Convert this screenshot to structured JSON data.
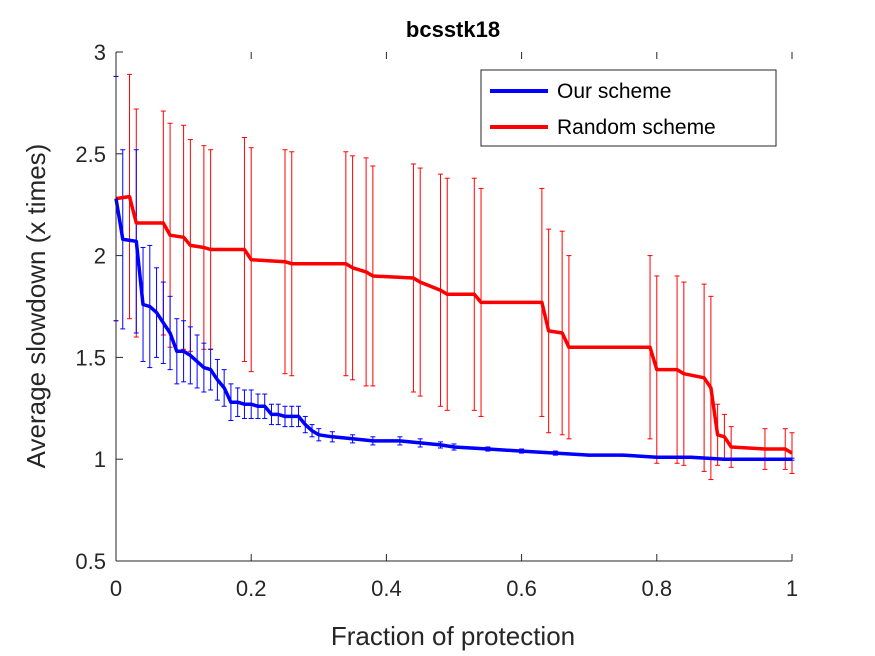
{
  "chart_data": {
    "type": "line",
    "title": "bcsstk18",
    "xlabel": "Fraction of protection",
    "ylabel": "Average slowdown (x times)",
    "xlim": [
      0,
      1
    ],
    "ylim": [
      0.5,
      3
    ],
    "xticks": [
      0,
      0.2,
      0.4,
      0.6,
      0.8,
      1
    ],
    "xtick_labels": [
      "0",
      "0.2",
      "0.4",
      "0.6",
      "0.8",
      "1"
    ],
    "yticks": [
      0.5,
      1,
      1.5,
      2,
      2.5,
      3
    ],
    "ytick_labels": [
      "0.5",
      "1",
      "1.5",
      "2",
      "2.5",
      "3"
    ],
    "grid": false,
    "legend_position": "top-right",
    "series": [
      {
        "name": "Our scheme",
        "color": "#0000ff",
        "x": [
          0,
          0.01,
          0.03,
          0.04,
          0.05,
          0.06,
          0.07,
          0.08,
          0.09,
          0.1,
          0.11,
          0.12,
          0.13,
          0.14,
          0.15,
          0.16,
          0.17,
          0.18,
          0.19,
          0.2,
          0.21,
          0.22,
          0.23,
          0.24,
          0.25,
          0.26,
          0.27,
          0.28,
          0.29,
          0.3,
          0.32,
          0.35,
          0.38,
          0.42,
          0.45,
          0.48,
          0.5,
          0.55,
          0.6,
          0.65,
          0.7,
          0.75,
          0.8,
          0.85,
          0.9,
          0.95,
          1.0
        ],
        "y": [
          2.28,
          2.08,
          2.07,
          1.76,
          1.75,
          1.72,
          1.67,
          1.62,
          1.53,
          1.53,
          1.51,
          1.48,
          1.45,
          1.44,
          1.39,
          1.35,
          1.28,
          1.28,
          1.27,
          1.27,
          1.26,
          1.26,
          1.22,
          1.22,
          1.21,
          1.21,
          1.21,
          1.17,
          1.14,
          1.12,
          1.11,
          1.1,
          1.09,
          1.09,
          1.08,
          1.07,
          1.06,
          1.05,
          1.04,
          1.03,
          1.02,
          1.02,
          1.01,
          1.01,
          1.0,
          1.0,
          1.0
        ],
        "err": [
          0.6,
          0.44,
          0.45,
          0.28,
          0.3,
          0.22,
          0.2,
          0.18,
          0.16,
          0.15,
          0.14,
          0.13,
          0.12,
          0.1,
          0.1,
          0.09,
          0.09,
          0.07,
          0.07,
          0.07,
          0.06,
          0.06,
          0.05,
          0.05,
          0.05,
          0.05,
          0.05,
          0.04,
          0.03,
          0.03,
          0.025,
          0.02,
          0.02,
          0.02,
          0.02,
          0.015,
          0.015,
          0.01,
          0.01,
          0.01,
          0.005,
          0.005,
          0.005,
          0.005,
          0.005,
          0.005,
          0.005
        ]
      },
      {
        "name": "Random scheme",
        "color": "#ff0000",
        "x": [
          0,
          0.02,
          0.03,
          0.07,
          0.08,
          0.1,
          0.11,
          0.13,
          0.14,
          0.19,
          0.2,
          0.25,
          0.26,
          0.34,
          0.35,
          0.37,
          0.38,
          0.44,
          0.45,
          0.48,
          0.49,
          0.53,
          0.54,
          0.63,
          0.64,
          0.66,
          0.67,
          0.79,
          0.8,
          0.83,
          0.84,
          0.87,
          0.88,
          0.89,
          0.9,
          0.91,
          0.96,
          0.99,
          1.0
        ],
        "y": [
          2.28,
          2.29,
          2.16,
          2.16,
          2.1,
          2.09,
          2.05,
          2.04,
          2.03,
          2.03,
          1.98,
          1.97,
          1.96,
          1.96,
          1.94,
          1.92,
          1.9,
          1.89,
          1.87,
          1.83,
          1.81,
          1.81,
          1.77,
          1.77,
          1.63,
          1.62,
          1.55,
          1.55,
          1.44,
          1.44,
          1.42,
          1.4,
          1.35,
          1.12,
          1.11,
          1.06,
          1.05,
          1.05,
          1.03
        ],
        "err": [
          0.6,
          0.6,
          0.56,
          0.55,
          0.55,
          0.55,
          0.52,
          0.5,
          0.49,
          0.55,
          0.55,
          0.55,
          0.55,
          0.55,
          0.55,
          0.56,
          0.54,
          0.56,
          0.56,
          0.57,
          0.57,
          0.57,
          0.56,
          0.56,
          0.5,
          0.5,
          0.45,
          0.45,
          0.46,
          0.46,
          0.45,
          0.46,
          0.45,
          0.15,
          0.11,
          0.1,
          0.1,
          0.1,
          0.1
        ]
      }
    ]
  }
}
